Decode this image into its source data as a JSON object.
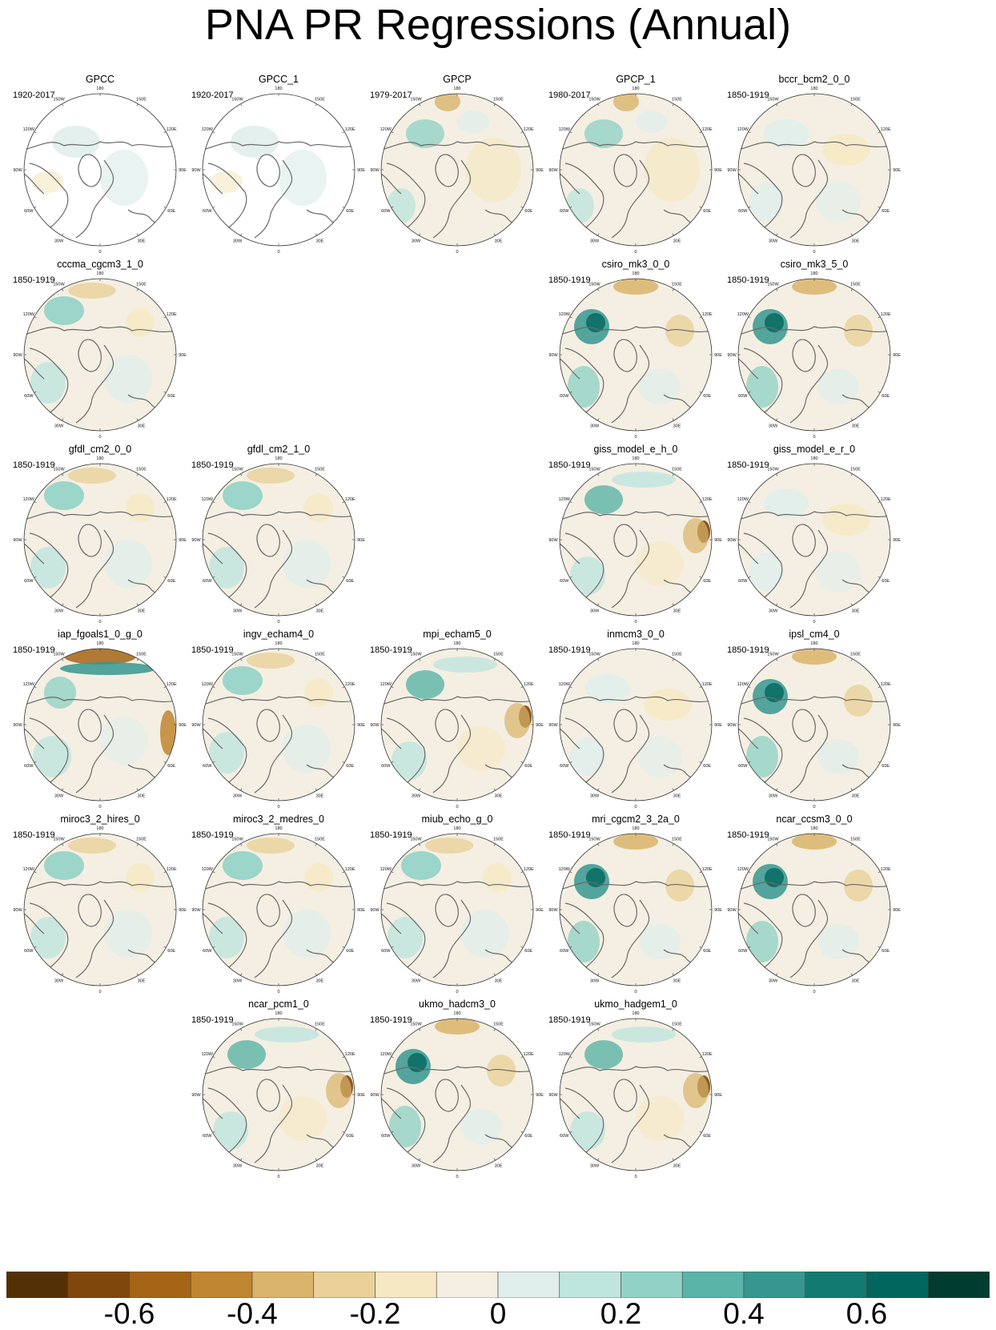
{
  "title": "PNA PR Regressions (Annual)",
  "map_labels": {
    "top": "180",
    "bottom": "0",
    "left": "90W",
    "right": "90E",
    "upper_left_1": "150W",
    "upper_right_1": "150E",
    "upper_left_2": "120W",
    "upper_right_2": "120E",
    "lower_left_1": "60W",
    "lower_right_1": "60E",
    "lower_left_2": "30W",
    "lower_right_2": "30E"
  },
  "panels": [
    {
      "name": "GPCC",
      "period": "1920-2017",
      "row": 0,
      "col": 0,
      "style": "gpcc"
    },
    {
      "name": "GPCC_1",
      "period": "1920-2017",
      "row": 0,
      "col": 1,
      "style": "gpcc"
    },
    {
      "name": "GPCP",
      "period": "1979-2017",
      "row": 0,
      "col": 2,
      "style": "gpcp"
    },
    {
      "name": "GPCP_1",
      "period": "1980-2017",
      "row": 0,
      "col": 3,
      "style": "gpcp"
    },
    {
      "name": "bccr_bcm2_0_0",
      "period": "1850-1919",
      "row": 0,
      "col": 4,
      "style": "weak"
    },
    {
      "name": "cccma_cgcm3_1_0",
      "period": "1850-1919",
      "row": 1,
      "col": 0,
      "style": "moderate"
    },
    {
      "name": "csiro_mk3_0_0",
      "period": "1850-1919",
      "row": 1,
      "col": 3,
      "style": "strong"
    },
    {
      "name": "csiro_mk3_5_0",
      "period": "1850-1919",
      "row": 1,
      "col": 4,
      "style": "strong"
    },
    {
      "name": "gfdl_cm2_0_0",
      "period": "1850-1919",
      "row": 2,
      "col": 0,
      "style": "moderate"
    },
    {
      "name": "gfdl_cm2_1_0",
      "period": "1850-1919",
      "row": 2,
      "col": 1,
      "style": "moderate"
    },
    {
      "name": "giss_model_e_h_0",
      "period": "1850-1919",
      "row": 2,
      "col": 3,
      "style": "asia"
    },
    {
      "name": "giss_model_e_r_0",
      "period": "1850-1919",
      "row": 2,
      "col": 4,
      "style": "weak"
    },
    {
      "name": "iap_fgoals1_0_g_0",
      "period": "1850-1919",
      "row": 3,
      "col": 0,
      "style": "band"
    },
    {
      "name": "ingv_echam4_0",
      "period": "1850-1919",
      "row": 3,
      "col": 1,
      "style": "moderate"
    },
    {
      "name": "mpi_echam5_0",
      "period": "1850-1919",
      "row": 3,
      "col": 2,
      "style": "asia"
    },
    {
      "name": "inmcm3_0_0",
      "period": "1850-1919",
      "row": 3,
      "col": 3,
      "style": "weak"
    },
    {
      "name": "ipsl_cm4_0",
      "period": "1850-1919",
      "row": 3,
      "col": 4,
      "style": "strong"
    },
    {
      "name": "miroc3_2_hires_0",
      "period": "1850-1919",
      "row": 4,
      "col": 0,
      "style": "moderate"
    },
    {
      "name": "miroc3_2_medres_0",
      "period": "1850-1919",
      "row": 4,
      "col": 1,
      "style": "moderate"
    },
    {
      "name": "miub_echo_g_0",
      "period": "1850-1919",
      "row": 4,
      "col": 2,
      "style": "moderate"
    },
    {
      "name": "mri_cgcm2_3_2a_0",
      "period": "1850-1919",
      "row": 4,
      "col": 3,
      "style": "strong"
    },
    {
      "name": "ncar_ccsm3_0_0",
      "period": "1850-1919",
      "row": 4,
      "col": 4,
      "style": "strong"
    },
    {
      "name": "ncar_pcm1_0",
      "period": "1850-1919",
      "row": 5,
      "col": 1,
      "style": "asia"
    },
    {
      "name": "ukmo_hadcm3_0",
      "period": "1850-1919",
      "row": 5,
      "col": 2,
      "style": "strong"
    },
    {
      "name": "ukmo_hadgem1_0",
      "period": "1850-1919",
      "row": 5,
      "col": 3,
      "style": "asia"
    }
  ],
  "colorbar": {
    "colors": [
      "#543005",
      "#7f470b",
      "#a56416",
      "#c08530",
      "#d9b46a",
      "#ead19a",
      "#f6e8c3",
      "#f4efe2",
      "#e0eeec",
      "#bfe5df",
      "#92d2c6",
      "#5ab4a8",
      "#35978f",
      "#137a71",
      "#01665e",
      "#003c30"
    ],
    "tick_labels": [
      "-0.6",
      "-0.4",
      "-0.2",
      "0",
      "0.2",
      "0.4",
      "0.6"
    ],
    "tick_values": [
      -0.6,
      -0.4,
      -0.2,
      0,
      0.2,
      0.4,
      0.6
    ],
    "min": -0.8,
    "max": 0.8
  }
}
